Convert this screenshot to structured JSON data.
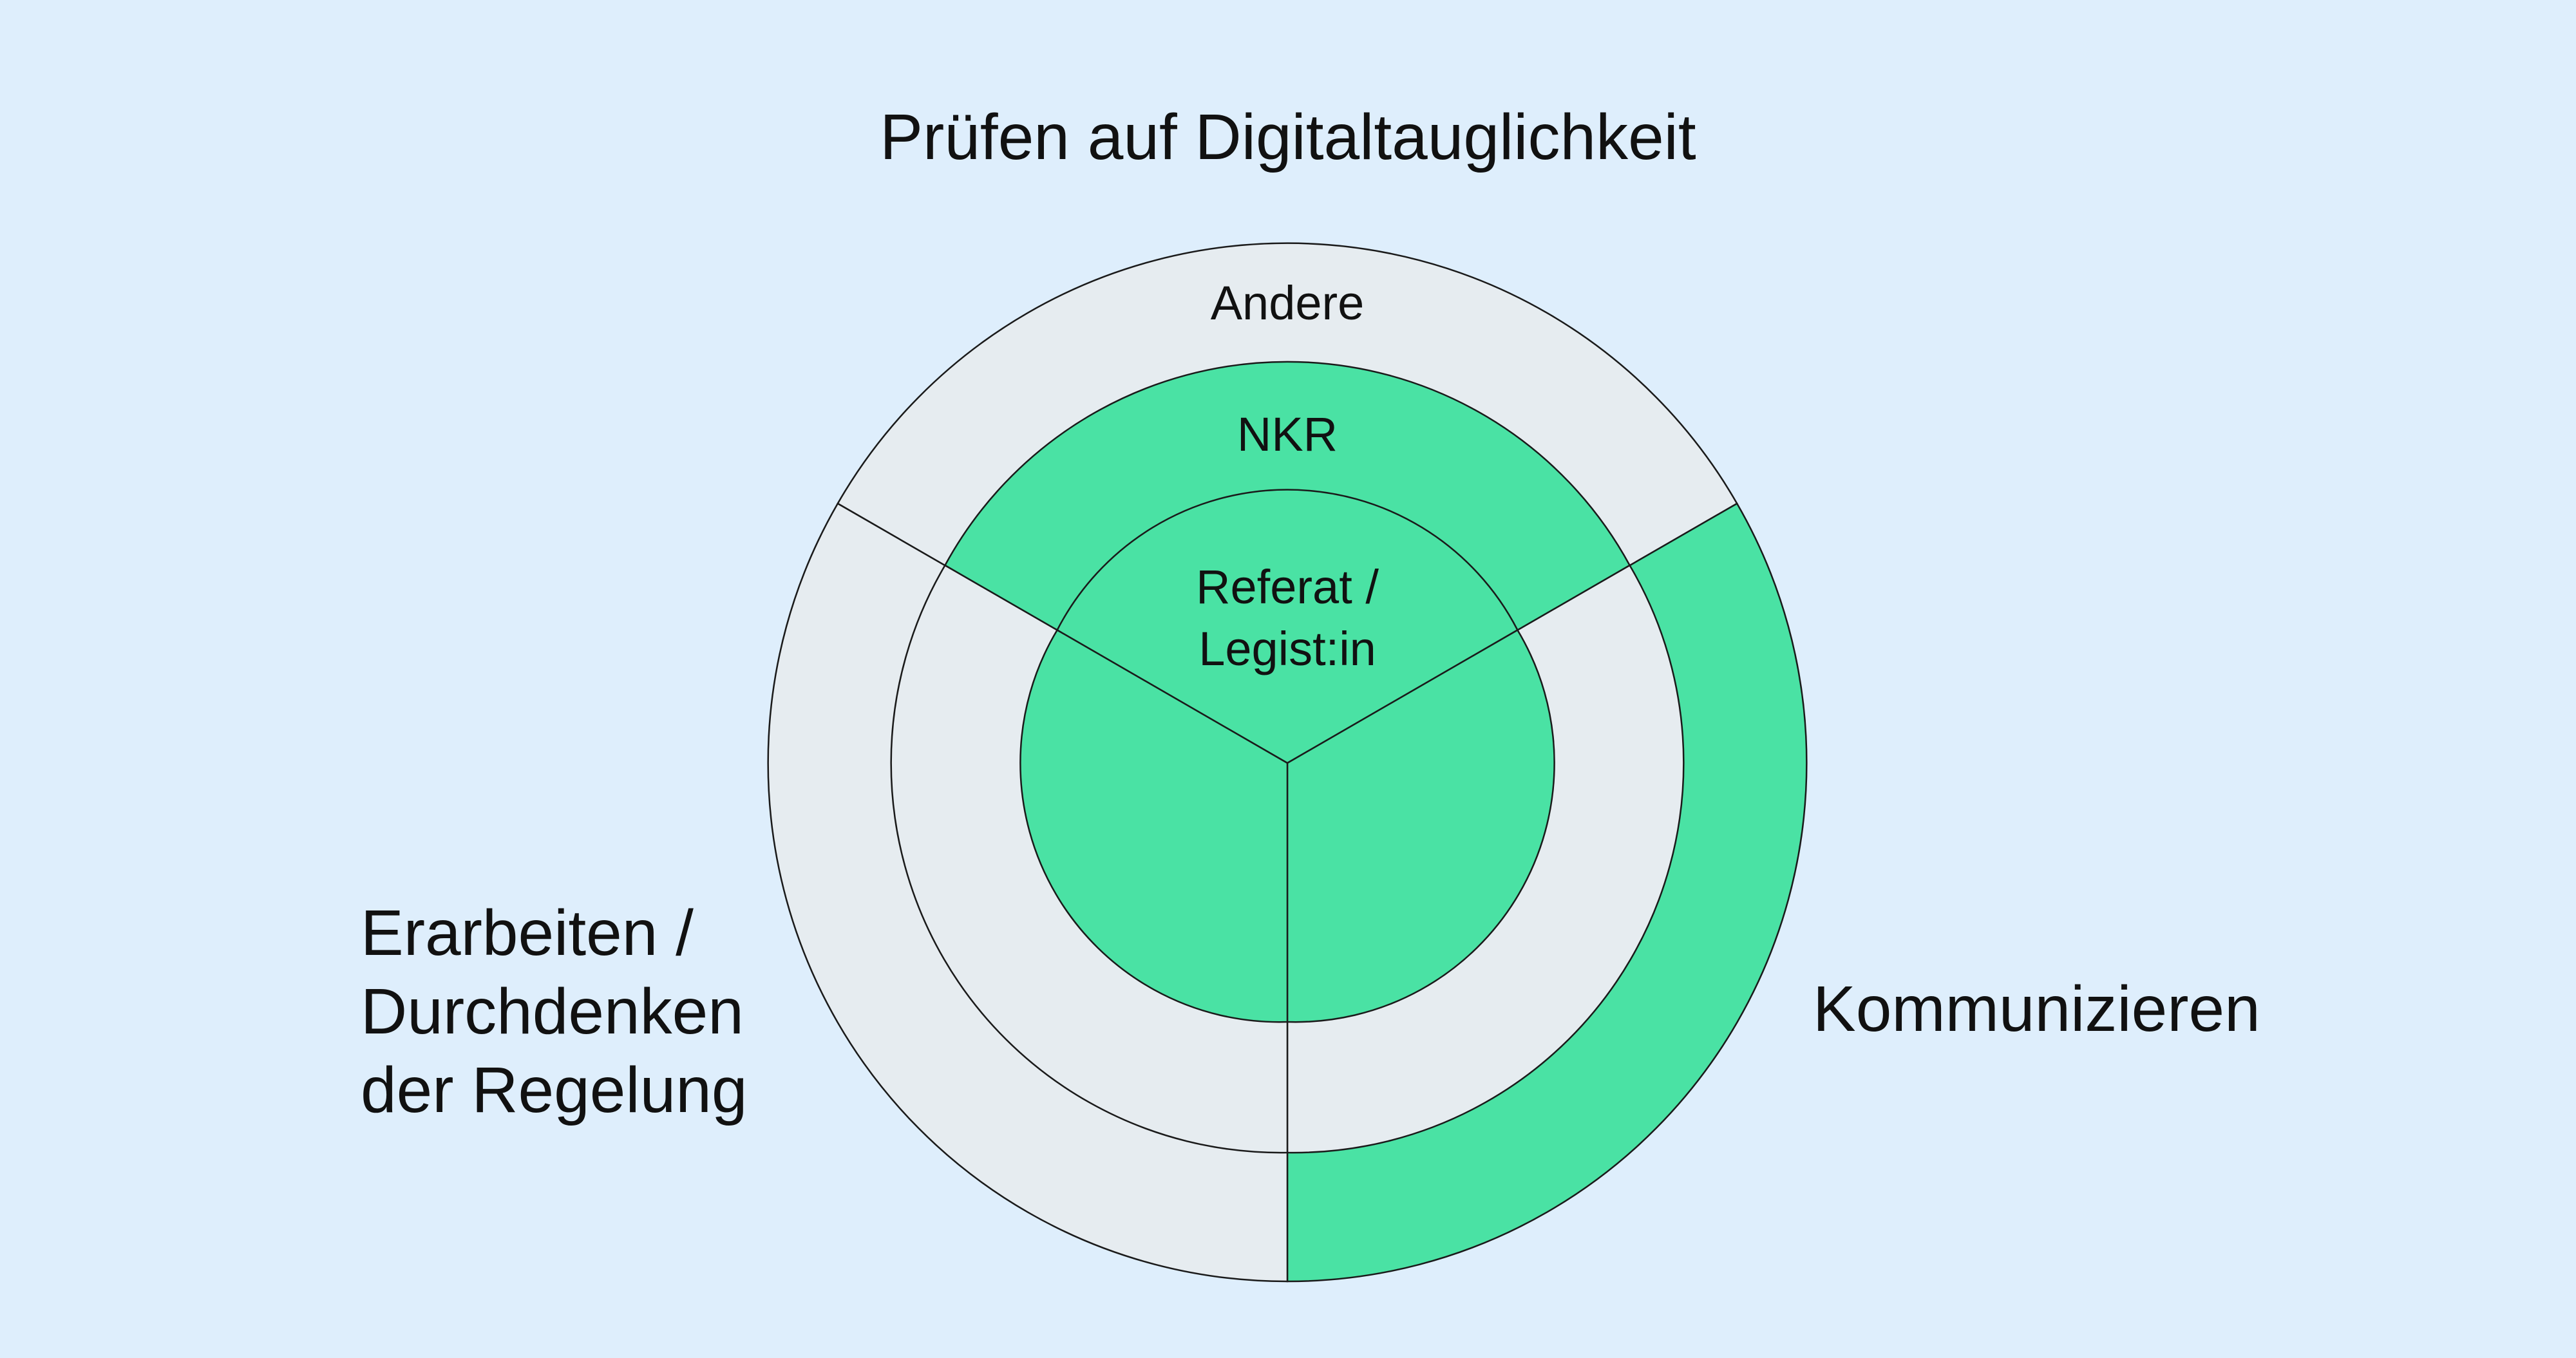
{
  "diagram": {
    "sections": {
      "top": "Prüfen auf Digitaltauglichkeit",
      "left": [
        "Erarbeiten /",
        "Durchdenken",
        "der Regelung"
      ],
      "right": "Kommunizieren"
    },
    "rings": {
      "outer": "Andere",
      "middle": "NKR",
      "inner": [
        "Referat /",
        "Legist:in"
      ]
    },
    "highlighted_segments": [
      {
        "section": "top",
        "ring": "middle"
      },
      {
        "section": "top",
        "ring": "inner"
      },
      {
        "section": "left",
        "ring": "inner"
      },
      {
        "section": "right",
        "ring": "inner"
      },
      {
        "section": "right",
        "ring": "outer"
      }
    ],
    "colors": {
      "background": "#deeefc",
      "highlight": "#4ae2a4",
      "neutral": "#e6ecf0",
      "stroke": "#1a1a1a"
    }
  }
}
